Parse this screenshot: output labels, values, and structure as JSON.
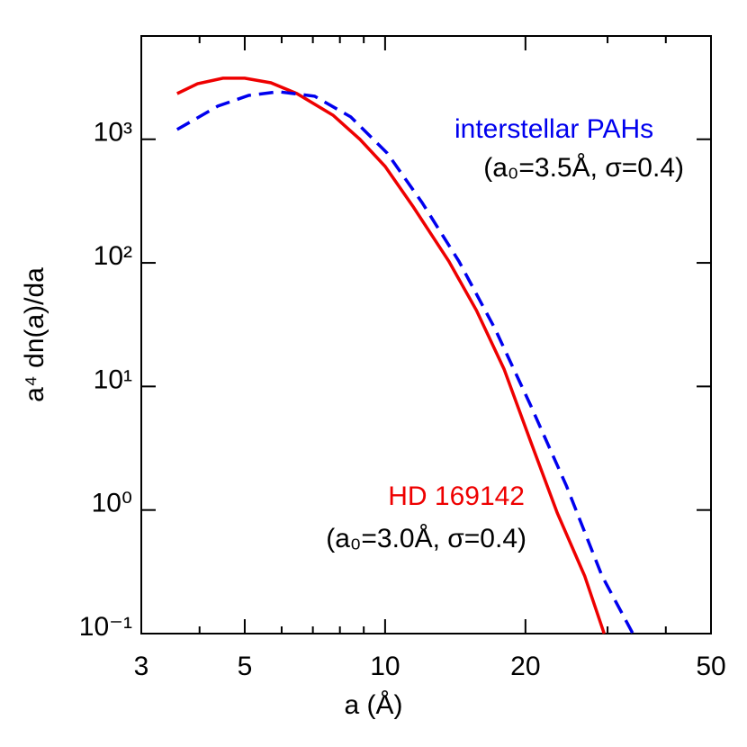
{
  "chart_data": {
    "type": "line",
    "xlabel": "a (Å)",
    "ylabel": "a⁴ dn(a)/da",
    "xscale": "log",
    "yscale": "log",
    "xlim": [
      3,
      50
    ],
    "ylim": [
      0.1,
      6850
    ],
    "xticks": [
      3,
      5,
      10,
      20,
      50
    ],
    "xminorticks": [
      4,
      6,
      7,
      8,
      9,
      30,
      40
    ],
    "yticks": [
      {
        "value": 0.1,
        "label": "10⁻¹"
      },
      {
        "value": 1,
        "label": "10⁰"
      },
      {
        "value": 10,
        "label": "10¹"
      },
      {
        "value": 100,
        "label": "10²"
      },
      {
        "value": 1000,
        "label": "10³"
      }
    ],
    "series": [
      {
        "name": "HD 169142",
        "color": "#ee0000",
        "dash": false,
        "x": [
          3.58,
          3.96,
          4.49,
          5.0,
          5.69,
          6.47,
          7.73,
          8.83,
          10,
          11.5,
          13.7,
          15.7,
          18.0,
          20.5,
          23.4,
          26.8,
          29.5
        ],
        "values": [
          2344,
          2818,
          3119,
          3120,
          2864,
          2344,
          1567,
          1000,
          603,
          283,
          103,
          41.2,
          13.8,
          3.62,
          0.946,
          0.292,
          0.1
        ]
      },
      {
        "name": "interstellar PAHs",
        "color": "#0000ee",
        "dash": true,
        "x": [
          3.58,
          4.38,
          5.1,
          5.9,
          7.06,
          8.44,
          10.1,
          12.0,
          14.4,
          17.2,
          20.5,
          24.5,
          29.2,
          34.0
        ],
        "values": [
          1200,
          1854,
          2265,
          2425,
          2230,
          1517,
          774,
          308,
          103,
          29.4,
          7.08,
          1.56,
          0.292,
          0.1
        ]
      }
    ],
    "annotations": [
      {
        "text": "interstellar PAHs",
        "color": "#0000ee"
      },
      {
        "text": "(a₀=3.5Å, σ=0.4)",
        "color": "#000000"
      },
      {
        "text": "HD 169142",
        "color": "#ee0000"
      },
      {
        "text": "(a₀=3.0Å, σ=0.4)",
        "color": "#000000"
      }
    ]
  }
}
